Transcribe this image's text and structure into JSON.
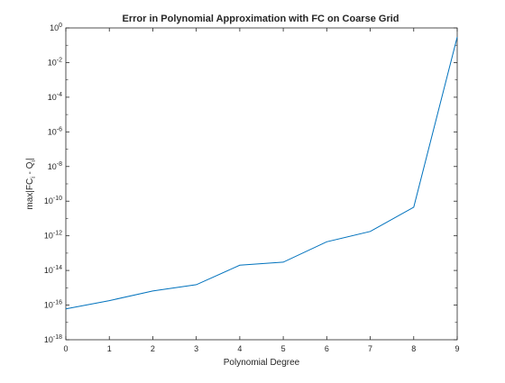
{
  "chart_data": {
    "type": "line",
    "title": "Error in Polynomial Approximation with FC on Coarse Grid",
    "xlabel": "Polynomial Degree",
    "ylabel": {
      "prefix": "max|FC",
      "sub1": "i",
      "middle": " - Q",
      "sub2": "i",
      "suffix": "|"
    },
    "xscale": "linear",
    "yscale": "log",
    "xlim": [
      0,
      9
    ],
    "ylim": [
      1e-18,
      1
    ],
    "x_ticks": [
      0,
      1,
      2,
      3,
      4,
      5,
      6,
      7,
      8,
      9
    ],
    "y_ticks": [
      {
        "value": 1e-18,
        "base": "10",
        "exp": "-18"
      },
      {
        "value": 1e-16,
        "base": "10",
        "exp": "-16"
      },
      {
        "value": 1e-14,
        "base": "10",
        "exp": "-14"
      },
      {
        "value": 1e-12,
        "base": "10",
        "exp": "-12"
      },
      {
        "value": 1e-10,
        "base": "10",
        "exp": "-10"
      },
      {
        "value": 1e-08,
        "base": "10",
        "exp": "-8"
      },
      {
        "value": 1e-06,
        "base": "10",
        "exp": "-6"
      },
      {
        "value": 0.0001,
        "base": "10",
        "exp": "-4"
      },
      {
        "value": 0.01,
        "base": "10",
        "exp": "-2"
      },
      {
        "value": 1,
        "base": "10",
        "exp": "0"
      }
    ],
    "grid": false,
    "series": [
      {
        "color": "#0072bd",
        "x": [
          0,
          1,
          2,
          3,
          4,
          5,
          6,
          7,
          8,
          9
        ],
        "y": [
          6e-17,
          1.8e-16,
          6.5e-16,
          1.5e-15,
          2e-14,
          3e-14,
          4.5e-13,
          1.8e-12,
          4.5e-11,
          0.3
        ]
      }
    ]
  }
}
